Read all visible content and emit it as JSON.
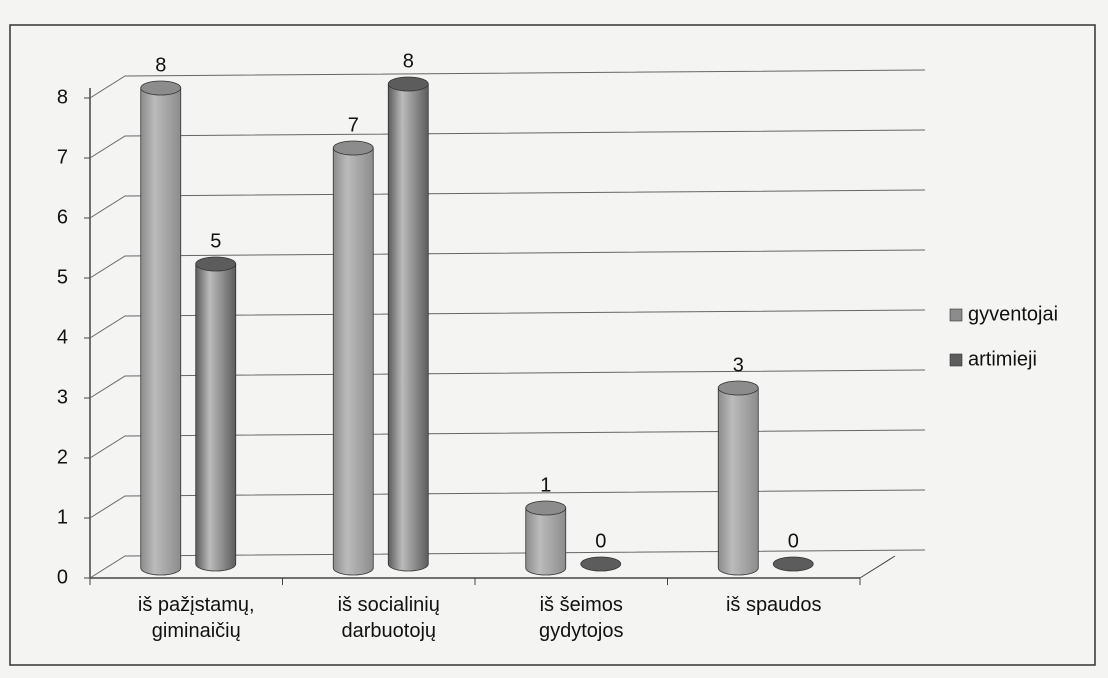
{
  "chart_data": {
    "type": "bar",
    "categories": [
      "iš pažįstamų, giminaičių",
      "iš socialinių darbuotojų",
      "iš šeimos gydytojos",
      "iš spaudos"
    ],
    "series": [
      {
        "name": "gyventojai",
        "color": "#8c8c8c",
        "values": [
          8,
          7,
          1,
          3
        ]
      },
      {
        "name": "artimieji",
        "color": "#5c5c5c",
        "values": [
          5,
          8,
          0,
          0
        ]
      }
    ],
    "ylim": [
      0,
      8
    ],
    "yticks": [
      0,
      1,
      2,
      3,
      4,
      5,
      6,
      7,
      8
    ],
    "grid": true,
    "legend": "right"
  }
}
